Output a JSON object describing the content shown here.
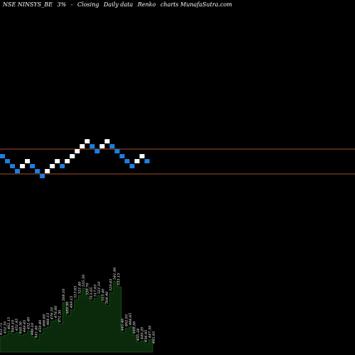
{
  "header": {
    "symbol": "NSE NINSYS_BE",
    "box_size": "3%",
    "arrow": "-",
    "basis": "Closing",
    "period": "Daily data",
    "chart_kind": "Renko",
    "source": "charts MunafaSutra.com"
  },
  "colors": {
    "background": "#000000",
    "up_brick": "#ffffff",
    "down_brick": "#1e7fe0",
    "reference_line": "#a0522d",
    "volume_fill": "#0b2a0b",
    "volume_stroke": "#1f6f1f"
  },
  "chart_data": {
    "type": "renko",
    "box_size_pct": 3,
    "bricks": [
      {
        "dir": "down",
        "level": 0
      },
      {
        "dir": "down",
        "level": -1
      },
      {
        "dir": "down",
        "level": -2
      },
      {
        "dir": "down",
        "level": -3
      },
      {
        "dir": "up",
        "level": -2
      },
      {
        "dir": "up",
        "level": -1
      },
      {
        "dir": "down",
        "level": -2
      },
      {
        "dir": "down",
        "level": -3
      },
      {
        "dir": "down",
        "level": -4
      },
      {
        "dir": "up",
        "level": -3
      },
      {
        "dir": "up",
        "level": -2
      },
      {
        "dir": "up",
        "level": -1
      },
      {
        "dir": "down",
        "level": -2
      },
      {
        "dir": "up",
        "level": -1
      },
      {
        "dir": "up",
        "level": 0
      },
      {
        "dir": "up",
        "level": 1
      },
      {
        "dir": "up",
        "level": 2
      },
      {
        "dir": "up",
        "level": 3
      },
      {
        "dir": "down",
        "level": 2
      },
      {
        "dir": "down",
        "level": 1
      },
      {
        "dir": "up",
        "level": 2
      },
      {
        "dir": "up",
        "level": 3
      },
      {
        "dir": "down",
        "level": 2
      },
      {
        "dir": "down",
        "level": 1
      },
      {
        "dir": "down",
        "level": 0
      },
      {
        "dir": "down",
        "level": -1
      },
      {
        "dir": "down",
        "level": -2
      },
      {
        "dir": "up",
        "level": -1
      },
      {
        "dir": "up",
        "level": 0
      },
      {
        "dir": "down",
        "level": -1
      }
    ],
    "reference_lines": [
      {
        "name": "upper",
        "level": 2.0
      },
      {
        "name": "lower",
        "level": -3.0
      }
    ],
    "volume_labels": [
      "451.75",
      "452.35",
      "462.15",
      "449.10",
      "451.95",
      "448.30",
      "449.45",
      "452.40",
      "446.10",
      "441.40",
      "450.40",
      "466.60",
      "466.15",
      "476.55",
      "476.60",
      "471.30",
      "508.10",
      "489.90",
      "499.15",
      "513.65",
      "521.40",
      "535.50",
      "520.70",
      "513.05",
      "517.65",
      "521.10",
      "513.40",
      "508.40",
      "529.65",
      "541.90",
      "533.15",
      "445.40",
      "462.95",
      "466.65",
      "448.50",
      "435.28",
      "440.20",
      "436.95",
      "447.50",
      "445.95"
    ],
    "volume": [
      22,
      24,
      30,
      26,
      28,
      24,
      26,
      30,
      22,
      18,
      26,
      34,
      36,
      44,
      46,
      40,
      70,
      52,
      60,
      74,
      80,
      90,
      78,
      72,
      76,
      80,
      70,
      66,
      84,
      100,
      92,
      28,
      34,
      36,
      24,
      14,
      16,
      12,
      18,
      10
    ],
    "xlabel": "",
    "ylabel": ""
  }
}
